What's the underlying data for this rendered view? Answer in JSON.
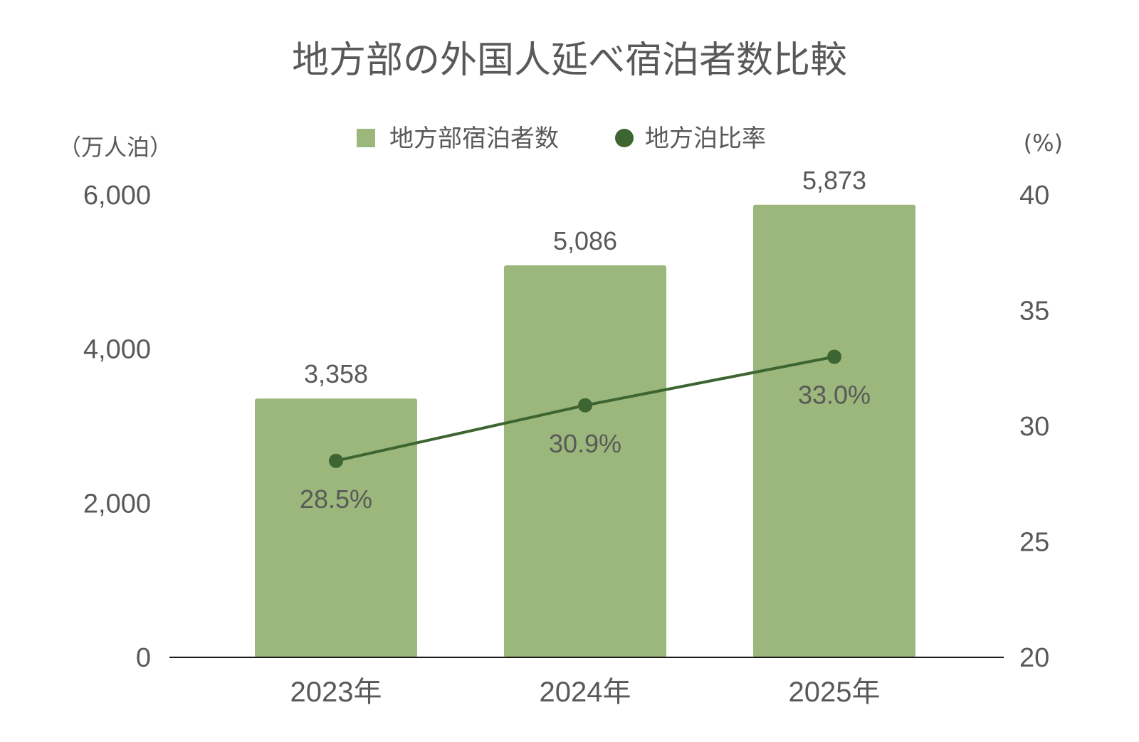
{
  "chart_data": {
    "type": "bar",
    "title": "地方部の外国人延べ宿泊者数比較",
    "categories": [
      "2023年",
      "2024年",
      "2025年"
    ],
    "series": [
      {
        "name": "地方部宿泊者数",
        "type": "bar",
        "axis": "left",
        "values": [
          3358,
          5086,
          5873
        ],
        "value_labels": [
          "3,358",
          "5,086",
          "5,873"
        ],
        "color": "#9bb77b"
      },
      {
        "name": "地方泊比率",
        "type": "line",
        "axis": "right",
        "values": [
          28.5,
          30.9,
          33.0
        ],
        "value_labels": [
          "28.5%",
          "30.9%",
          "33.0%"
        ],
        "color": "#3d6531"
      }
    ],
    "y_left": {
      "unit_label": "（万人泊）",
      "ylim": [
        0,
        6000
      ],
      "ticks": [
        0,
        2000,
        4000,
        6000
      ],
      "tick_labels": [
        "0",
        "2,000",
        "4,000",
        "6,000"
      ]
    },
    "y_right": {
      "unit_label": "(%)",
      "ylim": [
        20,
        40
      ],
      "ticks": [
        20,
        25,
        30,
        35,
        40
      ],
      "tick_labels": [
        "20",
        "25",
        "30",
        "35",
        "40"
      ]
    },
    "legend_position": "top-center",
    "grid": false
  }
}
